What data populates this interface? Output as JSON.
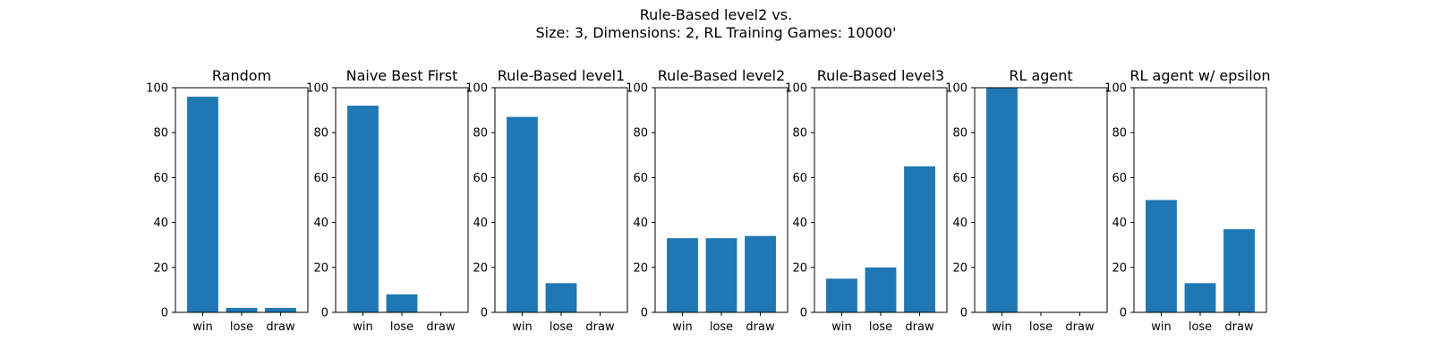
{
  "figure": {
    "title_line1": "Rule-Based level2 vs.",
    "title_line2": "Size: 3, Dimensions: 2, RL Training Games: 10000'"
  },
  "chart_data": [
    {
      "type": "bar",
      "title": "Random",
      "categories": [
        "win",
        "lose",
        "draw"
      ],
      "values": [
        96,
        2,
        2
      ],
      "ylim": [
        0,
        100
      ],
      "yticks": [
        0,
        20,
        40,
        60,
        80,
        100
      ],
      "color": "#1f77b4"
    },
    {
      "type": "bar",
      "title": "Naive Best First",
      "categories": [
        "win",
        "lose",
        "draw"
      ],
      "values": [
        92,
        8,
        0
      ],
      "ylim": [
        0,
        100
      ],
      "yticks": [
        0,
        20,
        40,
        60,
        80,
        100
      ],
      "color": "#1f77b4"
    },
    {
      "type": "bar",
      "title": "Rule-Based level1",
      "categories": [
        "win",
        "lose",
        "draw"
      ],
      "values": [
        87,
        13,
        0
      ],
      "ylim": [
        0,
        100
      ],
      "yticks": [
        0,
        20,
        40,
        60,
        80,
        100
      ],
      "color": "#1f77b4"
    },
    {
      "type": "bar",
      "title": "Rule-Based level2",
      "categories": [
        "win",
        "lose",
        "draw"
      ],
      "values": [
        33,
        33,
        34
      ],
      "ylim": [
        0,
        100
      ],
      "yticks": [
        0,
        20,
        40,
        60,
        80,
        100
      ],
      "color": "#1f77b4"
    },
    {
      "type": "bar",
      "title": "Rule-Based level3",
      "categories": [
        "win",
        "lose",
        "draw"
      ],
      "values": [
        15,
        20,
        65
      ],
      "ylim": [
        0,
        100
      ],
      "yticks": [
        0,
        20,
        40,
        60,
        80,
        100
      ],
      "color": "#1f77b4"
    },
    {
      "type": "bar",
      "title": "RL agent",
      "categories": [
        "win",
        "lose",
        "draw"
      ],
      "values": [
        100,
        0,
        0
      ],
      "ylim": [
        0,
        100
      ],
      "yticks": [
        0,
        20,
        40,
        60,
        80,
        100
      ],
      "color": "#1f77b4"
    },
    {
      "type": "bar",
      "title": "RL agent w/ epsilon",
      "categories": [
        "win",
        "lose",
        "draw"
      ],
      "values": [
        50,
        13,
        37
      ],
      "ylim": [
        0,
        100
      ],
      "yticks": [
        0,
        20,
        40,
        60,
        80,
        100
      ],
      "color": "#1f77b4"
    }
  ]
}
